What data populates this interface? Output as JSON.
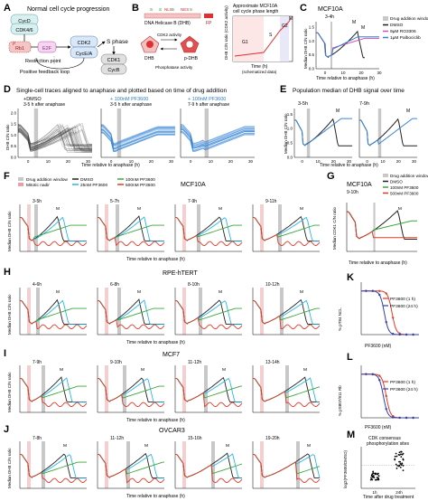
{
  "colors": {
    "dmso": "#222222",
    "ro3306": "#d64fb4",
    "palbo": "#3a7fd0",
    "pf25": "#29b6e8",
    "pf100": "#3aa63a",
    "pf500": "#e23a2a",
    "blue_traces": "#3a86d6",
    "gray_traces": "#444444",
    "drug_window": "#c8c8c8",
    "mitotic": "#e8a0a0",
    "dhb_red": "#e84d4d"
  },
  "A": {
    "letter": "A",
    "title": "Normal cell cycle progression",
    "cycd": "CycD",
    "cdk46": "CDK4/6",
    "rb1": "Rb1",
    "e2f": "E2F",
    "cdk2": "CDK2",
    "cyce": "CycE/A",
    "sphase": "S phase",
    "cdk1": "CDK1",
    "cycb": "CycB",
    "restriction": "Restriction point",
    "feedback": "Positive feedback loop"
  },
  "B": {
    "letter": "B",
    "sensor_label": "DNA Helicase B (DHB)",
    "fp": "FP",
    "s1": "S",
    "s2": "S",
    "s3": "S",
    "s4": "S",
    "nls": "NLS",
    "nes": "NES",
    "cdk_activity": "CDK2 activity",
    "phosphatase": "Phosphatase activity",
    "dhb": "DHB",
    "pdhb": "p-DHB",
    "approx_title_1": "Approximate MCF10A",
    "approx_title_2": "cell cycle phase length",
    "ylabel": "DHB C/N ratio (CDK2 activity)",
    "xlabel": "Time (h)",
    "xsub": "(schematized data)",
    "g1": "G1",
    "s": "S",
    "g2": "G2",
    "m": "M"
  },
  "C": {
    "letter": "C",
    "title": "MCF10A",
    "window_label": "3-4h",
    "ylabel": "Median DHB C/N ratio",
    "xlabel": "Time relative to anaphase (h)",
    "legend": [
      "Drug addition window",
      "DMSO",
      "9µM RO3306",
      "1µM Palbociclib"
    ],
    "m1": "M",
    "m2": "M",
    "xticks": [
      "0",
      "10",
      "20",
      "30"
    ],
    "yticks": [
      "0.0",
      "0.5",
      "1.0",
      "1.5"
    ]
  },
  "D": {
    "letter": "D",
    "title": "Single-cell traces aligned to anaphase and plotted based on time of drug addition",
    "panel1_label": "+DMSO",
    "panel1_sub": "3-5 h after anaphase",
    "panel2_label": "+ 100nM PF3600",
    "panel2_sub": "3-5 h after anaphase",
    "panel3_label": "+ 100nM PF3600",
    "panel3_sub": "7-9 h after anaphase",
    "ylabel": "DHB C/N ratio",
    "xlabel": "Time relative to anaphase (h)",
    "xticks": [
      "0",
      "10",
      "20",
      "30"
    ],
    "yticks": [
      "0.0",
      "0.5",
      "1.0",
      "1.5",
      "2.0"
    ]
  },
  "E": {
    "letter": "E",
    "title": "Population median of DHB signal over time",
    "panel1_label": "3-5h",
    "panel2_label": "7-9h",
    "ylabel": "Median DHB C/N ratio",
    "xlabel": "Time relative to anaphase (h)",
    "m1": "M",
    "m2": "M",
    "xticks": [
      "0",
      "10",
      "20",
      "30"
    ],
    "yticks": [
      "0.0",
      "0.5",
      "1.0",
      "1.5"
    ]
  },
  "F": {
    "letter": "F",
    "title": "MCF10A",
    "legend": [
      "Drug addition window",
      "Mitotic nadir",
      "DMSO",
      "25nM PF3600",
      "100nM PF3600",
      "500nM PF3600"
    ],
    "panel_labels": [
      "3-5h",
      "5-7h",
      "7-9h",
      "9-11h"
    ],
    "ylabel": "Median DHB C/N ratio",
    "xlabel": "Time relative to anaphase (h)",
    "m": "M"
  },
  "G": {
    "letter": "G",
    "title": "MCF10A",
    "window_label": "9-10h",
    "legend": [
      "Drug addition window",
      "DMSO",
      "100nM PF3600",
      "500nM PF3600"
    ],
    "ylabel": "Median CDK1 C/N ratio",
    "xlabel": "Time relative to anaphase (h)",
    "m": "M"
  },
  "H": {
    "letter": "H",
    "title": "RPE-hTERT",
    "panel_labels": [
      "4-6h",
      "6-8h",
      "8-10h",
      "10-12h"
    ],
    "ylabel": "Median DHB C/N ratio",
    "xlabel": "Time relative to anaphase (h)",
    "m": "M"
  },
  "I": {
    "letter": "I",
    "title": "MCF7",
    "panel_labels": [
      "7-9h",
      "9-10h",
      "11-12h",
      "13-14h"
    ],
    "ylabel": "Median DHB C/N ratio",
    "xlabel": "Time relative to anaphase (h)",
    "m": "M"
  },
  "J": {
    "letter": "J",
    "title": "OVCAR3",
    "panel_labels": [
      "7-8h",
      "11-12h",
      "15-16h",
      "19-20h"
    ],
    "ylabel": "Median DHB C/N ratio",
    "xlabel": "Time relative to anaphase (h)",
    "m": "M"
  },
  "K": {
    "letter": "K",
    "ylabel": "% pT84 NCL",
    "xlabel": "PF3600 (nM)",
    "legend": [
      "PF3600 (1 h)",
      "PF3600 (24 h)"
    ]
  },
  "L": {
    "letter": "L",
    "ylabel": "% pS807/811 Rb",
    "xlabel": "PF3600 (nM)",
    "legend": [
      "PF3600 (1 h)",
      "PF3600 (24 h)"
    ]
  },
  "M": {
    "letter": "M",
    "title_1": "CDK consensus",
    "title_2": "phosphorylation sites",
    "ylabel": "log2(PF3600/DMSO)",
    "xlabel": "Time after drug treatment",
    "xticks": [
      "1h",
      "24h"
    ]
  }
}
